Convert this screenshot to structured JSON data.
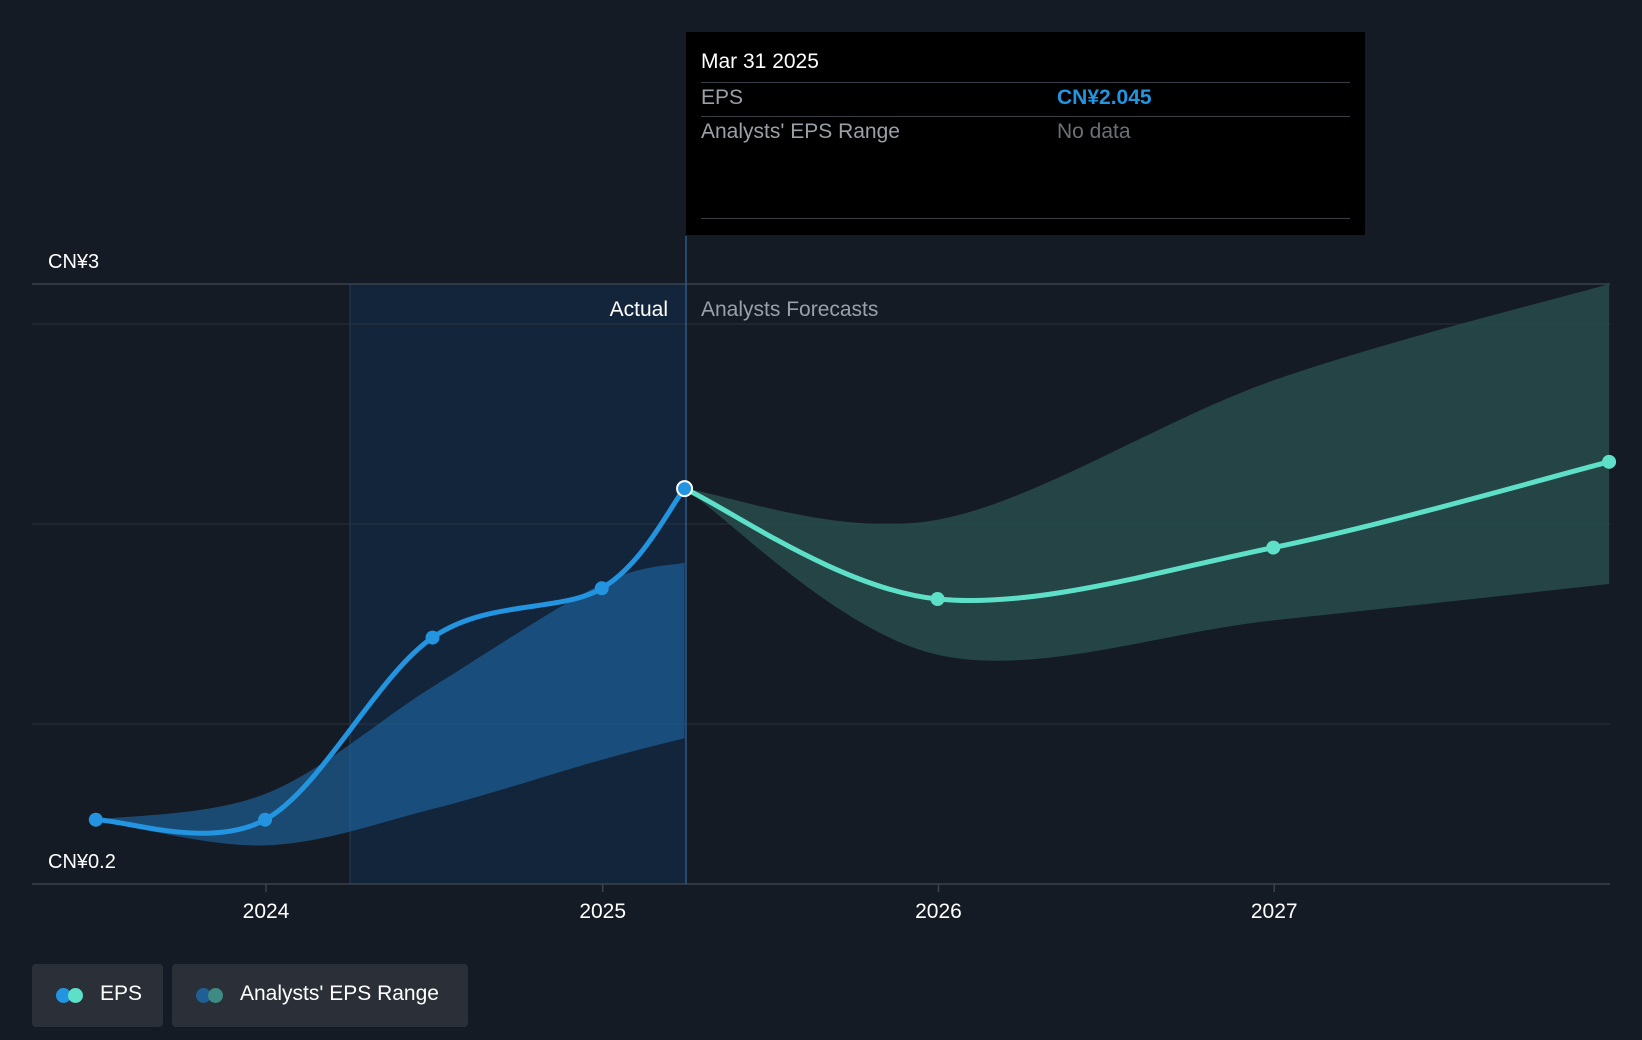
{
  "colors": {
    "background": "#151b24",
    "actual_line": "#2394df",
    "forecast_line": "#5ee0c8",
    "actual_band": "#1f6fb0",
    "forecast_band": "#2a5350",
    "tooltip_eps": "#2394df"
  },
  "tooltip": {
    "date": "Mar 31 2025",
    "eps_label": "EPS",
    "eps_value": "CN¥2.045",
    "range_label": "Analysts' EPS Range",
    "range_value": "No data"
  },
  "legend": {
    "eps_label": "EPS",
    "range_label": "Analysts' EPS Range"
  },
  "chart_data": {
    "type": "line",
    "x_ticks": [
      "2024",
      "2025",
      "2026",
      "2027"
    ],
    "y_axis_labels": {
      "top": "CN¥3",
      "bottom": "CN¥0.2"
    },
    "ylim": [
      0.2,
      3.0
    ],
    "regions": {
      "actual": "Actual",
      "forecast": "Analysts Forecasts"
    },
    "series": [
      {
        "name": "EPS",
        "role": "actual",
        "x": [
          "2023-06-30",
          "2023-12-31",
          "2024-06-30",
          "2024-12-31",
          "2025-03-31"
        ],
        "values": [
          0.5,
          0.5,
          1.35,
          1.58,
          2.045
        ]
      },
      {
        "name": "EPS",
        "role": "forecast",
        "x": [
          "2025-03-31",
          "2025-12-31",
          "2026-12-31",
          "2027-12-31"
        ],
        "values": [
          2.045,
          1.53,
          1.77,
          2.17
        ]
      }
    ],
    "ranges": [
      {
        "name": "Analysts' EPS Range",
        "role": "actual",
        "x": [
          "2023-06-30",
          "2023-12-31",
          "2024-06-30",
          "2024-12-31",
          "2025-03-31"
        ],
        "low": [
          0.5,
          0.38,
          0.55,
          0.78,
          0.88
        ],
        "high": [
          0.5,
          0.62,
          1.12,
          1.6,
          1.7
        ]
      },
      {
        "name": "Analysts' EPS Range",
        "role": "forecast",
        "x": [
          "2025-03-31",
          "2025-12-31",
          "2026-12-31",
          "2027-12-31"
        ],
        "low": [
          2.045,
          1.27,
          1.43,
          1.6
        ],
        "high": [
          2.045,
          1.9,
          2.55,
          3.0
        ]
      }
    ],
    "grid": true,
    "legend_position": "bottom-left"
  }
}
